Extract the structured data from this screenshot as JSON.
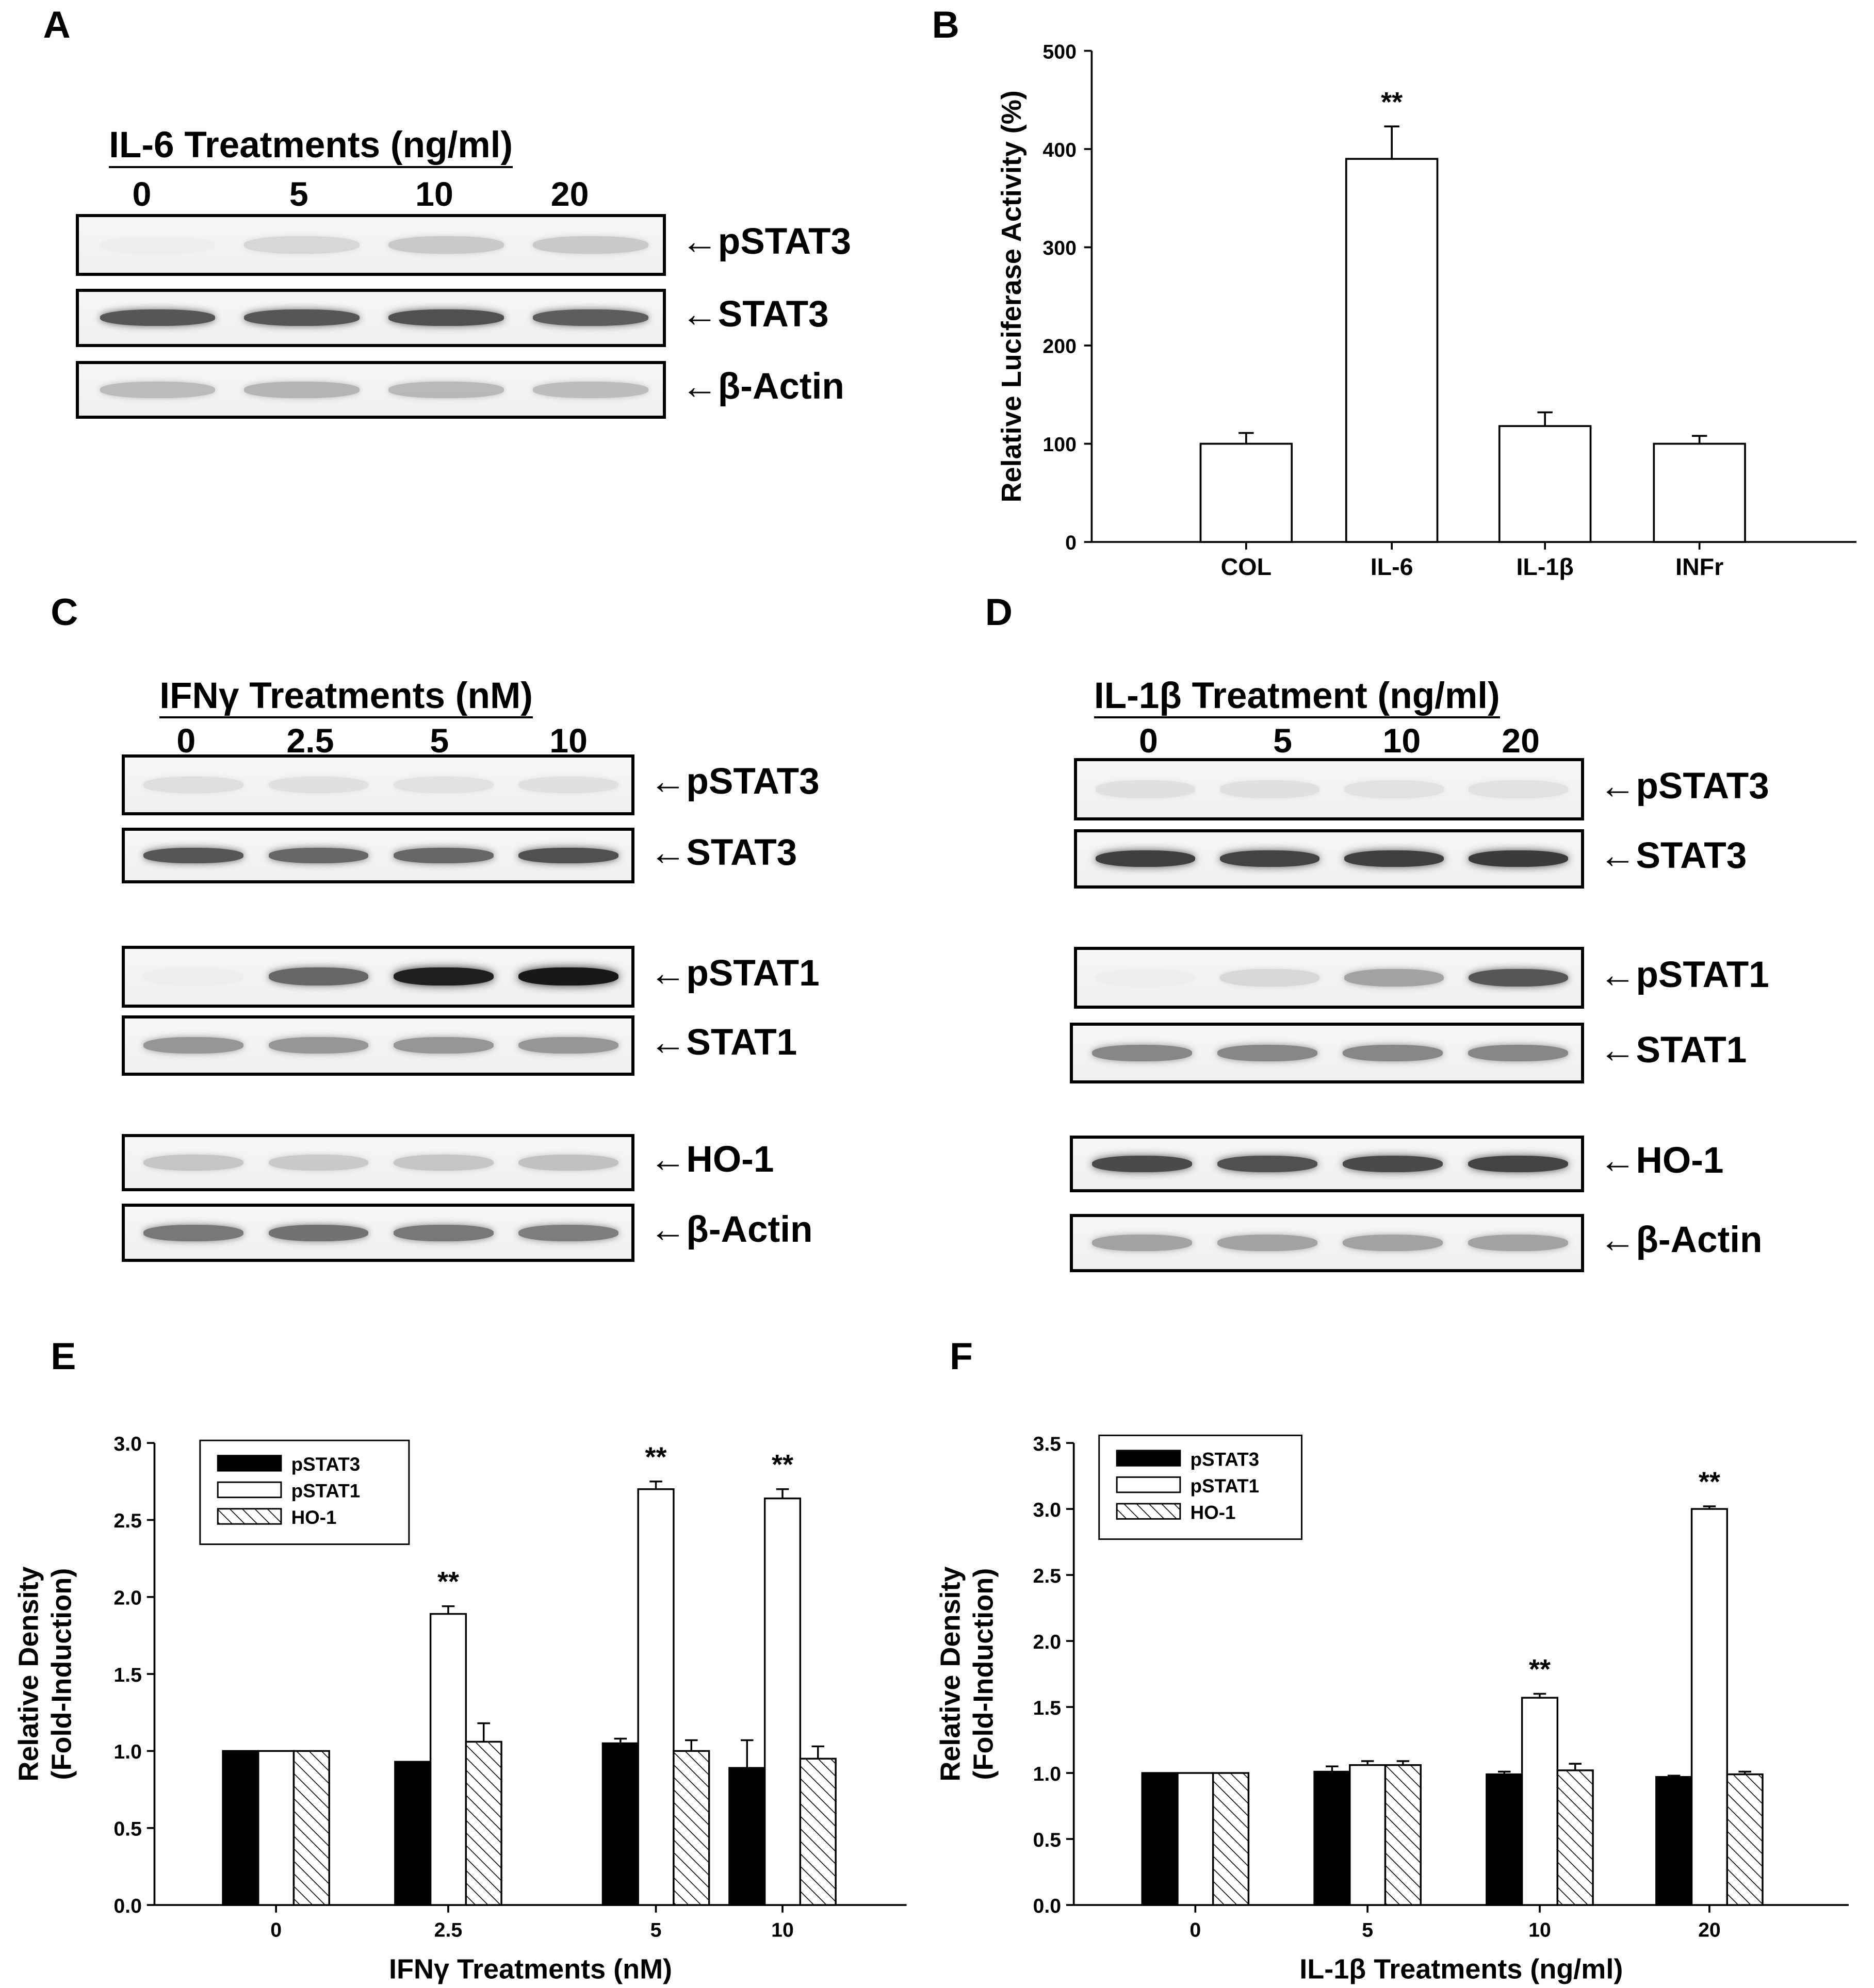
{
  "panel_letters": {
    "a": "A",
    "b": "B",
    "c": "C",
    "d": "D",
    "e": "E",
    "f": "F"
  },
  "arrow_glyph": "←",
  "panel_a": {
    "title": "IL-6 Treatments (ng/ml)",
    "doses": [
      "0",
      "5",
      "10",
      "20"
    ],
    "blots": [
      {
        "label": "pSTAT3",
        "band_intensity": [
          0.02,
          0.2,
          0.28,
          0.28
        ]
      },
      {
        "label": "STAT3",
        "band_intensity": [
          0.7,
          0.7,
          0.72,
          0.68
        ]
      },
      {
        "label": "β-Actin",
        "band_intensity": [
          0.35,
          0.38,
          0.36,
          0.34
        ]
      }
    ]
  },
  "panel_c": {
    "title": "IFNγ Treatments (nM)",
    "doses": [
      "0",
      "2.5",
      "5",
      "10"
    ],
    "blots": [
      {
        "label": "pSTAT3",
        "band_intensity": [
          0.15,
          0.14,
          0.13,
          0.14
        ]
      },
      {
        "label": "STAT3",
        "band_intensity": [
          0.7,
          0.65,
          0.65,
          0.72
        ]
      },
      {
        "label": "pSTAT1",
        "band_intensity": [
          0.03,
          0.65,
          0.95,
          0.98
        ]
      },
      {
        "label": "STAT1",
        "band_intensity": [
          0.5,
          0.5,
          0.5,
          0.5
        ]
      },
      {
        "label": "HO-1",
        "band_intensity": [
          0.3,
          0.28,
          0.3,
          0.32
        ]
      },
      {
        "label": "β-Actin",
        "band_intensity": [
          0.6,
          0.62,
          0.6,
          0.58
        ]
      }
    ]
  },
  "panel_d": {
    "title": "IL-1β Treatment (ng/ml)",
    "doses": [
      "0",
      "5",
      "10",
      "20"
    ],
    "blots": [
      {
        "label": "pSTAT3",
        "band_intensity": [
          0.14,
          0.14,
          0.13,
          0.13
        ]
      },
      {
        "label": "STAT3",
        "band_intensity": [
          0.8,
          0.78,
          0.8,
          0.82
        ]
      },
      {
        "label": "pSTAT1",
        "band_intensity": [
          0.03,
          0.2,
          0.45,
          0.7
        ]
      },
      {
        "label": "STAT1",
        "band_intensity": [
          0.55,
          0.55,
          0.55,
          0.55
        ]
      },
      {
        "label": "HO-1",
        "band_intensity": [
          0.75,
          0.72,
          0.75,
          0.78
        ]
      },
      {
        "label": "β-Actin",
        "band_intensity": [
          0.45,
          0.45,
          0.45,
          0.45
        ]
      }
    ]
  },
  "colors": {
    "black": "#000000",
    "white": "#ffffff",
    "band": "#2a2a2a"
  },
  "chart_data": [
    {
      "panel": "B",
      "type": "bar",
      "title": "",
      "xlabel": "",
      "ylabel": "Relative  Luciferase  Activity  (%)",
      "categories": [
        "COL",
        "IL-6",
        "IL-1β",
        "INFr"
      ],
      "values": [
        100,
        390,
        118,
        100
      ],
      "errors": [
        11,
        33,
        14,
        8
      ],
      "annotations": [
        "",
        "**",
        "",
        ""
      ],
      "ylim": [
        0,
        500
      ],
      "yticks": [
        "0",
        "100",
        "200",
        "300",
        "400",
        "500"
      ],
      "grid": false
    },
    {
      "panel": "E",
      "type": "bar",
      "title": "",
      "xlabel": "IFNγ Treatments (nM)",
      "ylabel": [
        "Relative Density",
        "(Fold-Induction)"
      ],
      "categories": [
        "0",
        "2.5",
        "5",
        "10"
      ],
      "series": [
        {
          "name": "pSTAT3",
          "fill": "solid",
          "values": [
            1.0,
            0.93,
            1.05,
            0.89
          ],
          "errors": [
            0,
            0,
            0.03,
            0.18
          ]
        },
        {
          "name": "pSTAT1",
          "fill": "open",
          "values": [
            1.0,
            1.89,
            2.7,
            2.64
          ],
          "errors": [
            0,
            0.05,
            0.05,
            0.06
          ]
        },
        {
          "name": "HO-1",
          "fill": "hatch",
          "values": [
            1.0,
            1.06,
            1.0,
            0.95
          ],
          "errors": [
            0,
            0.12,
            0.07,
            0.08
          ]
        }
      ],
      "annotations": [
        "",
        "**",
        "**",
        "**"
      ],
      "ylim": [
        0,
        3.0
      ],
      "yticks": [
        "0.0",
        "0.5",
        "1.0",
        "1.5",
        "2.0",
        "2.5",
        "3.0"
      ],
      "legend_position": "top-left",
      "grid": false
    },
    {
      "panel": "F",
      "type": "bar",
      "title": "",
      "xlabel": "IL-1β Treatments (ng/ml)",
      "ylabel": [
        "Relative Density",
        "(Fold-Induction)"
      ],
      "categories": [
        "0",
        "5",
        "10",
        "20"
      ],
      "series": [
        {
          "name": "pSTAT3",
          "fill": "solid",
          "values": [
            1.0,
            1.01,
            0.99,
            0.97
          ],
          "errors": [
            0,
            0.04,
            0.02,
            0.01
          ]
        },
        {
          "name": "pSTAT1",
          "fill": "open",
          "values": [
            1.0,
            1.06,
            1.57,
            3.0
          ],
          "errors": [
            0,
            0.03,
            0.03,
            0.02
          ]
        },
        {
          "name": "HO-1",
          "fill": "hatch",
          "values": [
            1.0,
            1.06,
            1.02,
            0.99
          ],
          "errors": [
            0,
            0.03,
            0.05,
            0.02
          ]
        }
      ],
      "annotations": [
        "",
        "",
        "**",
        "**"
      ],
      "ylim": [
        0,
        3.5
      ],
      "yticks": [
        "0.0",
        "0.5",
        "1.0",
        "1.5",
        "2.0",
        "2.5",
        "3.0",
        "3.5"
      ],
      "legend_position": "top-left",
      "grid": false
    }
  ]
}
